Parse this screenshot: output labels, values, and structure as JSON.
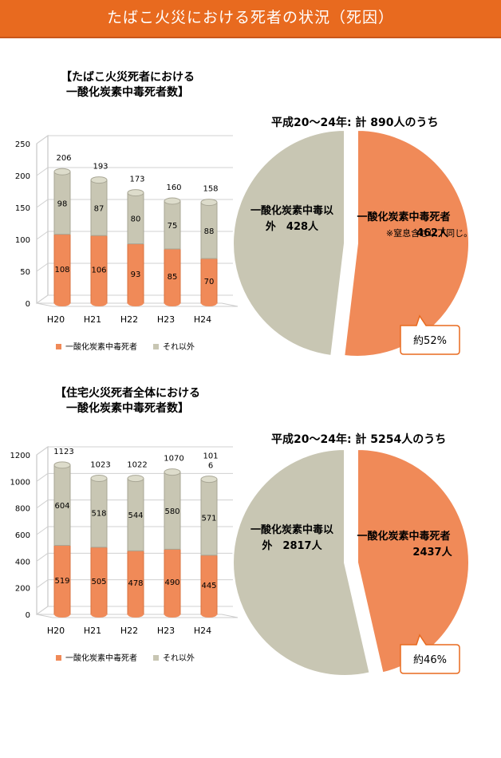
{
  "banner": {
    "title": "たばこ火災における死者の状況（死因）"
  },
  "colors": {
    "banner": "#e86a1f",
    "co": "#f08a58",
    "other": "#c8c6b3"
  },
  "panels": [
    {
      "bar_title_line1": "【たばこ火災死者における",
      "bar_title_line2": "一酸化炭素中毒死者数】",
      "pie_caption": "平成20〜24年: 計 890人のうち",
      "pie_co_label1": "一酸化炭素中毒死者",
      "pie_co_label2": "462人",
      "pie_note": "※窒息含む以下同じ。",
      "pie_other_label1": "一酸化炭素中毒以",
      "pie_other_label2": "外　428人",
      "callout": "約52%"
    },
    {
      "bar_title_line1": "【住宅火災死者全体における",
      "bar_title_line2": "一酸化炭素中毒死者数】",
      "pie_caption": "平成20〜24年: 計 5254人のうち",
      "pie_co_label1": "一酸化炭素中毒死者",
      "pie_co_label2": "2437人",
      "pie_note": "",
      "pie_other_label1": "一酸化炭素中毒以",
      "pie_other_label2": "外　2817人",
      "callout": "約46%"
    }
  ],
  "chart_data": [
    {
      "type": "bar",
      "stacked": true,
      "categories": [
        "H20",
        "H21",
        "H22",
        "H23",
        "H24"
      ],
      "series": [
        {
          "name": "一酸化炭素中毒死者",
          "values": [
            108,
            106,
            93,
            85,
            70
          ]
        },
        {
          "name": "それ以外",
          "values": [
            98,
            87,
            80,
            75,
            88
          ]
        }
      ],
      "totals": [
        "206",
        "193",
        "173",
        "160",
        "158"
      ],
      "yticks": [
        0,
        50,
        100,
        150,
        200,
        250
      ],
      "ylim": [
        0,
        250
      ]
    },
    {
      "type": "pie",
      "slices": [
        {
          "label": "一酸化炭素中毒死者",
          "value": 462
        },
        {
          "label": "一酸化炭素中毒以外",
          "value": 428
        }
      ]
    },
    {
      "type": "bar",
      "stacked": true,
      "categories": [
        "H20",
        "H21",
        "H22",
        "H23",
        "H24"
      ],
      "series": [
        {
          "name": "一酸化炭素中毒死者",
          "values": [
            519,
            505,
            478,
            490,
            445
          ]
        },
        {
          "name": "それ以外",
          "values": [
            604,
            518,
            544,
            580,
            571
          ]
        }
      ],
      "totals": [
        "1123",
        "1023",
        "1022",
        "1070",
        "101\n6"
      ],
      "yticks": [
        0,
        200,
        400,
        600,
        800,
        1000,
        1200
      ],
      "ylim": [
        0,
        1200
      ]
    },
    {
      "type": "pie",
      "slices": [
        {
          "label": "一酸化炭素中毒死者",
          "value": 2437
        },
        {
          "label": "一酸化炭素中毒以外",
          "value": 2817
        }
      ]
    }
  ]
}
